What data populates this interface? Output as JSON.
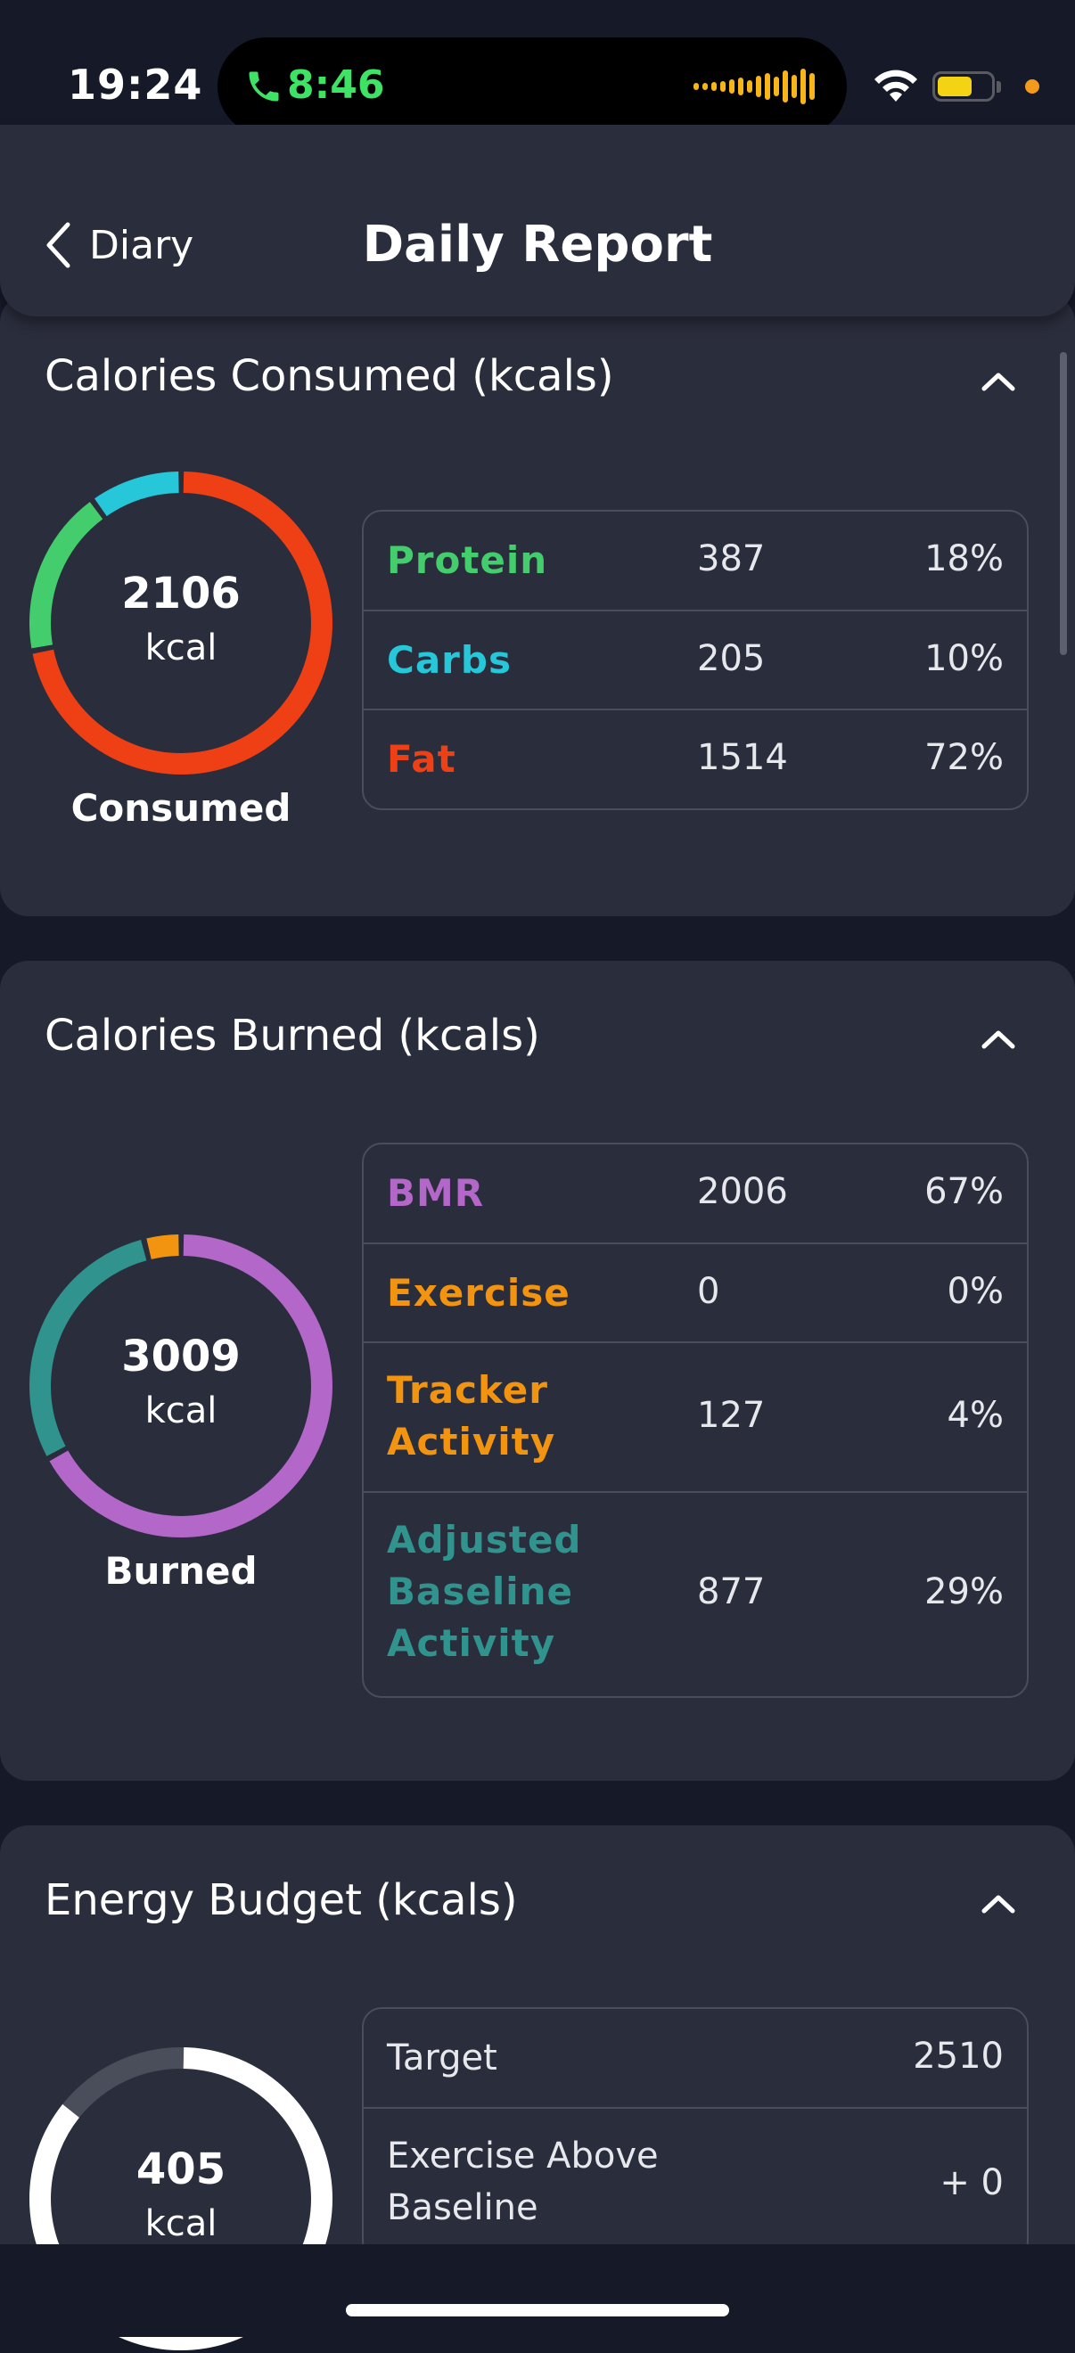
{
  "status_bar": {
    "time": "19:24",
    "call_time": "8:46",
    "icons": [
      "phone-icon",
      "audio-wave-icon",
      "wifi-icon",
      "battery-icon",
      "orange-dot-indicator"
    ],
    "call_color": "#3ee264",
    "wave_color": "#f7b51a"
  },
  "nav": {
    "back_label": "Diary",
    "title": "Daily Report"
  },
  "consumed": {
    "title": "Calories Consumed (kcals)",
    "total": "2106",
    "unit": "kcal",
    "label": "Consumed",
    "rows": [
      {
        "name": "Protein",
        "value": "387",
        "pct": "18%",
        "color": "#43cd6c",
        "fraction": 0.18
      },
      {
        "name": "Carbs",
        "value": "205",
        "pct": "10%",
        "color": "#25c7d9",
        "fraction": 0.1
      },
      {
        "name": "Fat",
        "value": "1514",
        "pct": "72%",
        "color": "#ee4014",
        "fraction": 0.72
      }
    ]
  },
  "burned": {
    "title": "Calories Burned (kcals)",
    "total": "3009",
    "unit": "kcal",
    "label": "Burned",
    "rows": [
      {
        "name": "BMR",
        "value": "2006",
        "pct": "67%",
        "color": "#b267c9",
        "fraction": 0.67
      },
      {
        "name": "Exercise",
        "value": "0",
        "pct": "0%",
        "color": "#f2940f",
        "fraction": 0.0
      },
      {
        "name": "Tracker Activity",
        "value": "127",
        "pct": "4%",
        "color": "#f2940f",
        "fraction": 0.04
      },
      {
        "name": "Adjusted Baseline Activity",
        "value": "877",
        "pct": "29%",
        "color": "#31938e",
        "fraction": 0.29
      }
    ]
  },
  "budget": {
    "title": "Energy Budget (kcals)",
    "total": "405",
    "unit": "kcal",
    "rows": [
      {
        "name": "Target",
        "value": "2510"
      },
      {
        "name": "Exercise Above Baseline",
        "value": "+ 0"
      }
    ],
    "ring_color": "#ffffff",
    "track_color": "#4a4d5a"
  }
}
